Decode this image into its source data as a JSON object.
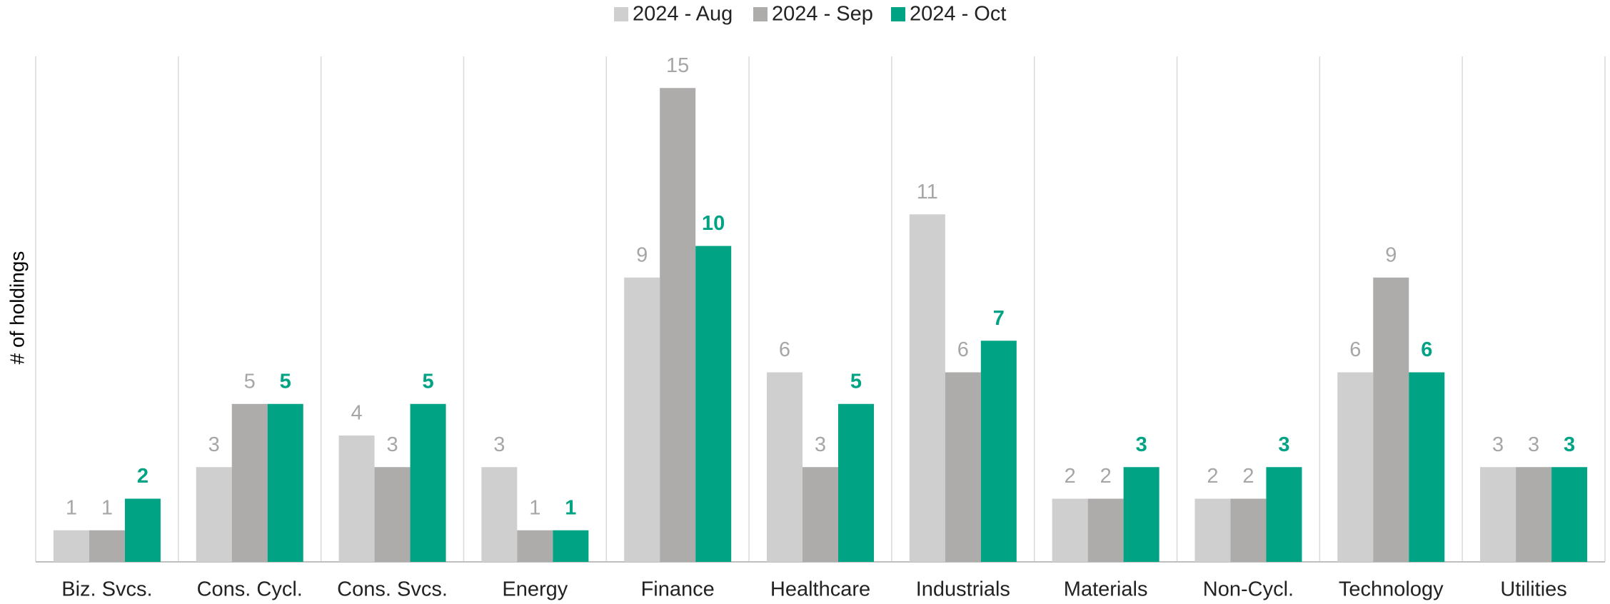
{
  "chart_data": {
    "type": "bar",
    "y_label": "# of holdings",
    "categories": [
      "Biz. Svcs.",
      "Cons. Cycl.",
      "Cons. Svcs.",
      "Energy",
      "Finance",
      "Healthcare",
      "Industrials",
      "Materials",
      "Non-Cycl.",
      "Technology",
      "Utilities"
    ],
    "series": [
      {
        "name": "2024 - Aug",
        "color": "#d0cfd0",
        "values": [
          1,
          3,
          4,
          3,
          9,
          6,
          11,
          2,
          2,
          6,
          3
        ]
      },
      {
        "name": "2024 - Sep",
        "color": "#aeabab",
        "values": [
          1,
          5,
          3,
          1,
          15,
          3,
          6,
          2,
          2,
          9,
          3
        ]
      },
      {
        "name": "2024 - Oct",
        "color": "#00a383",
        "values": [
          2,
          5,
          5,
          1,
          10,
          5,
          7,
          3,
          3,
          6,
          3
        ]
      }
    ],
    "ylim": [
      0,
      16
    ],
    "legend": "top"
  }
}
